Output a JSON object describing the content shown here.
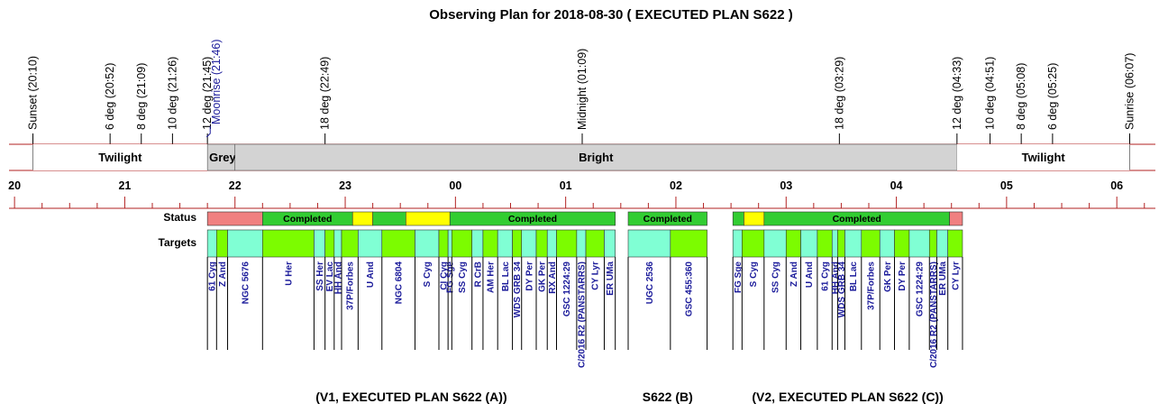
{
  "chart_data": {
    "type": "timeline",
    "title": "Observing Plan for 2018-08-30 ( EXECUTED PLAN S622 )",
    "time_axis": {
      "unit": "hour (local clock)",
      "start": 19.95,
      "end": 30.35,
      "tick_labels": [
        "20",
        "21",
        "22",
        "23",
        "00",
        "01",
        "02",
        "03",
        "04",
        "05",
        "06"
      ]
    },
    "events": [
      {
        "label": "Sunset (20:10)",
        "t": 20.167,
        "color": "#000000"
      },
      {
        "label": "6 deg (20:52)",
        "t": 20.867,
        "color": "#000000"
      },
      {
        "label": "8 deg (21:09)",
        "t": 21.15,
        "color": "#000000"
      },
      {
        "label": "10 deg (21:26)",
        "t": 21.433,
        "color": "#000000"
      },
      {
        "label": "12 deg (21:45)",
        "t": 21.75,
        "color": "#000000"
      },
      {
        "label": "Moonrise (21:46)",
        "t": 21.767,
        "color": "#1a1a9a"
      },
      {
        "label": "18 deg (22:49)",
        "t": 22.817,
        "color": "#000000"
      },
      {
        "label": "Midnight (01:09)",
        "t": 25.15,
        "color": "#000000"
      },
      {
        "label": "18 deg (03:29)",
        "t": 27.483,
        "color": "#000000"
      },
      {
        "label": "12 deg (04:33)",
        "t": 28.55,
        "color": "#000000"
      },
      {
        "label": "10 deg (04:51)",
        "t": 28.85,
        "color": "#000000"
      },
      {
        "label": "8 deg (05:08)",
        "t": 29.133,
        "color": "#000000"
      },
      {
        "label": "6 deg (05:25)",
        "t": 29.417,
        "color": "#000000"
      },
      {
        "label": "Sunrise (06:07)",
        "t": 30.117,
        "color": "#000000"
      }
    ],
    "sky_bands": [
      {
        "label": "Twilight",
        "start": 20.167,
        "end": 21.75,
        "color": "#ffffff"
      },
      {
        "label": "Grey",
        "start": 21.75,
        "end": 22.0,
        "color": "#d3d3d3"
      },
      {
        "label": "Bright",
        "start": 22.0,
        "end": 28.55,
        "color": "#d3d3d3"
      },
      {
        "label": "Twilight",
        "start": 28.55,
        "end": 30.117,
        "color": "#ffffff"
      }
    ],
    "row_labels": {
      "status": "Status",
      "targets": "Targets"
    },
    "status": [
      {
        "label": "",
        "start": 21.75,
        "end": 22.25,
        "color": "#f08080"
      },
      {
        "label": "Completed",
        "start": 22.25,
        "end": 23.067,
        "color": "#32cd32"
      },
      {
        "label": "",
        "start": 23.067,
        "end": 23.25,
        "color": "#ffff00"
      },
      {
        "label": "",
        "start": 23.25,
        "end": 23.55,
        "color": "#32cd32"
      },
      {
        "label": "",
        "start": 23.55,
        "end": 23.95,
        "color": "#ffff00"
      },
      {
        "label": "Completed",
        "start": 23.95,
        "end": 25.45,
        "color": "#32cd32"
      },
      {
        "label": "Completed",
        "start": 25.567,
        "end": 26.283,
        "color": "#32cd32"
      },
      {
        "label": "",
        "start": 26.517,
        "end": 26.617,
        "color": "#32cd32"
      },
      {
        "label": "",
        "start": 26.617,
        "end": 26.8,
        "color": "#ffff00"
      },
      {
        "label": "Completed",
        "start": 26.8,
        "end": 28.483,
        "color": "#32cd32"
      },
      {
        "label": "",
        "start": 28.483,
        "end": 28.6,
        "color": "#f08080"
      }
    ],
    "targets": [
      {
        "name": "61 Cyg",
        "start": 21.75,
        "end": 21.833,
        "color": "#80ffd4"
      },
      {
        "name": "Z And",
        "start": 21.833,
        "end": 21.933,
        "color": "#7cfc00"
      },
      {
        "name": "NGC 5676",
        "start": 21.933,
        "end": 22.25,
        "color": "#80ffd4"
      },
      {
        "name": "U Her",
        "start": 22.25,
        "end": 22.717,
        "color": "#7cfc00"
      },
      {
        "name": "SS Her",
        "start": 22.717,
        "end": 22.817,
        "color": "#80ffd4"
      },
      {
        "name": "EV Lac",
        "start": 22.817,
        "end": 22.9,
        "color": "#7cfc00"
      },
      {
        "name": "HH And",
        "start": 22.9,
        "end": 22.967,
        "color": "#80ffd4"
      },
      {
        "name": "37P/Forbes",
        "start": 22.967,
        "end": 23.117,
        "color": "#7cfc00"
      },
      {
        "name": "U And",
        "start": 23.117,
        "end": 23.333,
        "color": "#80ffd4"
      },
      {
        "name": "NGC 6804",
        "start": 23.333,
        "end": 23.633,
        "color": "#7cfc00"
      },
      {
        "name": "S Cyg",
        "start": 23.633,
        "end": 23.85,
        "color": "#80ffd4"
      },
      {
        "name": "CI Cyg",
        "start": 23.85,
        "end": 23.933,
        "color": "#7cfc00"
      },
      {
        "name": "FG Sge",
        "start": 23.933,
        "end": 23.967,
        "color": "#80ffd4"
      },
      {
        "name": "SS Cyg",
        "start": 23.967,
        "end": 24.15,
        "color": "#7cfc00"
      },
      {
        "name": "R CrB",
        "start": 24.15,
        "end": 24.25,
        "color": "#80ffd4"
      },
      {
        "name": "AM Her",
        "start": 24.25,
        "end": 24.383,
        "color": "#7cfc00"
      },
      {
        "name": "BL Lac",
        "start": 24.383,
        "end": 24.517,
        "color": "#80ffd4"
      },
      {
        "name": "WDS GRB 34",
        "start": 24.517,
        "end": 24.6,
        "color": "#7cfc00"
      },
      {
        "name": "DY Per",
        "start": 24.6,
        "end": 24.733,
        "color": "#80ffd4"
      },
      {
        "name": "GK Per",
        "start": 24.733,
        "end": 24.833,
        "color": "#7cfc00"
      },
      {
        "name": "RX And",
        "start": 24.833,
        "end": 24.917,
        "color": "#80ffd4"
      },
      {
        "name": "GSC 1224:29",
        "start": 24.917,
        "end": 25.1,
        "color": "#7cfc00"
      },
      {
        "name": "C/2016 R2 (PANSTARRS)",
        "start": 25.1,
        "end": 25.183,
        "color": "#80ffd4"
      },
      {
        "name": "CY Lyr",
        "start": 25.183,
        "end": 25.35,
        "color": "#7cfc00"
      },
      {
        "name": "ER UMa",
        "start": 25.35,
        "end": 25.45,
        "color": "#80ffd4"
      },
      {
        "name": "UGC 2536",
        "start": 25.567,
        "end": 25.95,
        "color": "#80ffd4"
      },
      {
        "name": "GSC 455:360",
        "start": 25.95,
        "end": 26.283,
        "color": "#7cfc00"
      },
      {
        "name": "FG Sge",
        "start": 26.517,
        "end": 26.6,
        "color": "#80ffd4"
      },
      {
        "name": "S Cyg",
        "start": 26.6,
        "end": 26.8,
        "color": "#7cfc00"
      },
      {
        "name": "SS Cyg",
        "start": 26.8,
        "end": 27.0,
        "color": "#80ffd4"
      },
      {
        "name": "Z And",
        "start": 27.0,
        "end": 27.133,
        "color": "#7cfc00"
      },
      {
        "name": "U And",
        "start": 27.133,
        "end": 27.283,
        "color": "#80ffd4"
      },
      {
        "name": "61 Cyg",
        "start": 27.283,
        "end": 27.417,
        "color": "#7cfc00"
      },
      {
        "name": "HH And",
        "start": 27.417,
        "end": 27.467,
        "color": "#80ffd4"
      },
      {
        "name": "WDS GRB 34",
        "start": 27.467,
        "end": 27.533,
        "color": "#7cfc00"
      },
      {
        "name": "BL Lac",
        "start": 27.533,
        "end": 27.683,
        "color": "#80ffd4"
      },
      {
        "name": "37P/Forbes",
        "start": 27.683,
        "end": 27.85,
        "color": "#7cfc00"
      },
      {
        "name": "GK Per",
        "start": 27.85,
        "end": 27.983,
        "color": "#80ffd4"
      },
      {
        "name": "DY Per",
        "start": 27.983,
        "end": 28.117,
        "color": "#7cfc00"
      },
      {
        "name": "GSC 1224:29",
        "start": 28.117,
        "end": 28.3,
        "color": "#80ffd4"
      },
      {
        "name": "C/2016 R2 (PANSTARRS)",
        "start": 28.3,
        "end": 28.367,
        "color": "#7cfc00"
      },
      {
        "name": "ER UMa",
        "start": 28.367,
        "end": 28.467,
        "color": "#80ffd4"
      },
      {
        "name": "CY Lyr",
        "start": 28.467,
        "end": 28.6,
        "color": "#7cfc00"
      }
    ],
    "plan_labels": [
      {
        "label": "(V1, EXECUTED PLAN S622 (A))",
        "start": 21.75,
        "end": 25.45
      },
      {
        "label": "S622 (B)",
        "start": 25.567,
        "end": 26.283
      },
      {
        "label": "(V2, EXECUTED PLAN S622 (C))",
        "start": 26.517,
        "end": 28.6
      }
    ],
    "colors": {
      "axis_line": "#b22222",
      "completed": "#32cd32",
      "incomplete": "#ffff00",
      "failed": "#f08080",
      "target_a": "#80ffd4",
      "target_b": "#7cfc00",
      "grey_sky": "#d3d3d3",
      "target_text": "#1a1a9a"
    }
  }
}
